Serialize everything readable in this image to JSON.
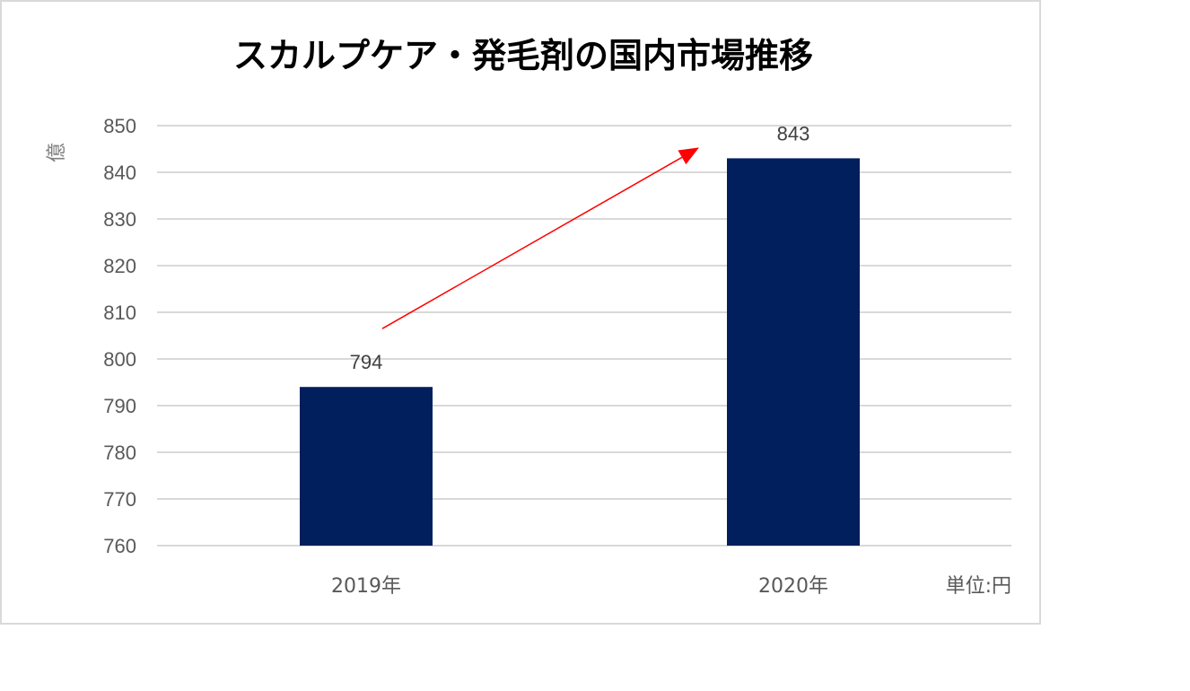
{
  "chart_data": {
    "type": "bar",
    "title": "スカルプケア・発毛剤の国内市場推移",
    "ylabel": "億",
    "unit_note": "単位:円",
    "categories": [
      "2019年",
      "2020年"
    ],
    "series": [
      {
        "values": [
          794,
          843
        ],
        "color": "#001f5c"
      }
    ],
    "data_labels": [
      "794",
      "843"
    ],
    "ylim": [
      760,
      850
    ],
    "yticks": [
      "760",
      "770",
      "780",
      "790",
      "800",
      "810",
      "820",
      "830",
      "840",
      "850"
    ],
    "grid": true,
    "annotation": {
      "type": "arrow",
      "color": "#ff0000",
      "direction": "upward trend from 2019年 to 2020年"
    },
    "legend": "none"
  }
}
